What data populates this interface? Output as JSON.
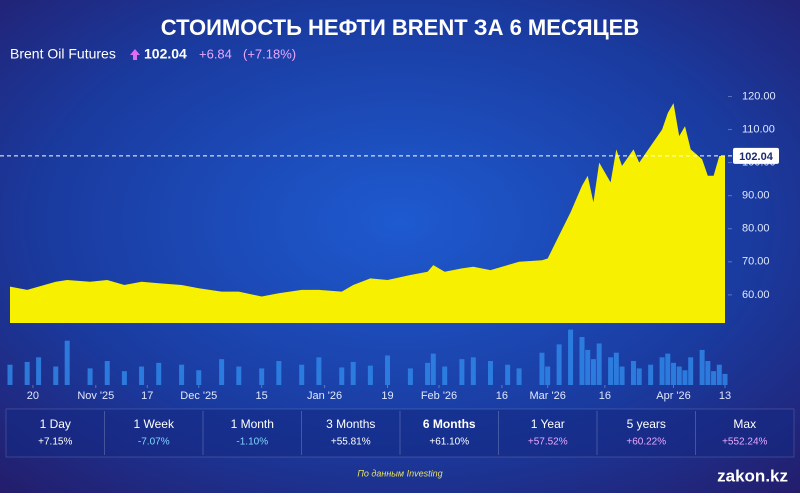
{
  "chart_data": {
    "type": "area",
    "title": "СТОИМОСТЬ НЕФТИ BRENT ЗА 6 МЕСЯЦЕВ",
    "header": {
      "name": "Brent Oil Futures",
      "price": "102.04",
      "change": "+6.84",
      "change_pct": "(+7.18%)"
    },
    "x": [
      0,
      3,
      5,
      8,
      10,
      14,
      17,
      20,
      23,
      26,
      30,
      33,
      37,
      40,
      44,
      47,
      51,
      54,
      58,
      60,
      63,
      66,
      70,
      73,
      74,
      76,
      79,
      81,
      84,
      87,
      89,
      93,
      94,
      96,
      98,
      100,
      101,
      102,
      103,
      105,
      106,
      107,
      109,
      110,
      112,
      114,
      115,
      116,
      117,
      118,
      119,
      121,
      122,
      123,
      124,
      125
    ],
    "series": [
      {
        "name": "Brent Oil Futures",
        "color": "#f7f000",
        "values": [
          62.5,
          61.5,
          62.5,
          64,
          64.5,
          64,
          64.5,
          63,
          64,
          63.5,
          63,
          62,
          61,
          61,
          59.5,
          60.5,
          61.5,
          61.5,
          61,
          63,
          65,
          64.5,
          66,
          67,
          69,
          67,
          68,
          68.5,
          67.5,
          69,
          70,
          70.5,
          71,
          78,
          85,
          93,
          96,
          88,
          100,
          94,
          104,
          99,
          104,
          100,
          105,
          110,
          115,
          118,
          108,
          111,
          104,
          101,
          96,
          96,
          102,
          102.04
        ]
      }
    ],
    "volume": [
      22,
      25,
      30,
      20,
      48,
      18,
      26,
      15,
      20,
      24,
      22,
      16,
      28,
      20,
      18,
      26,
      22,
      30,
      19,
      25,
      21,
      32,
      18,
      24,
      34,
      20,
      28,
      30,
      26,
      22,
      18,
      35,
      20,
      44,
      60,
      52,
      38,
      28,
      45,
      30,
      35,
      20,
      26,
      18,
      22,
      30,
      34,
      24,
      20,
      16,
      30,
      38,
      26,
      15,
      22,
      12
    ],
    "volume_color": "#2f86e8",
    "volume_lim": [
      0,
      65
    ],
    "xlim": [
      0,
      125
    ],
    "ylim": [
      51.5,
      128
    ],
    "xticks": [
      {
        "value": 4,
        "label": "20"
      },
      {
        "value": 15,
        "label": "Nov '25"
      },
      {
        "value": 24,
        "label": "17"
      },
      {
        "value": 33,
        "label": "Dec '25"
      },
      {
        "value": 44,
        "label": "15"
      },
      {
        "value": 55,
        "label": "Jan '26"
      },
      {
        "value": 66,
        "label": "19"
      },
      {
        "value": 75,
        "label": "Feb '26"
      },
      {
        "value": 86,
        "label": "16"
      },
      {
        "value": 94,
        "label": "Mar '26"
      },
      {
        "value": 104,
        "label": "16"
      },
      {
        "value": 116,
        "label": "Apr '26"
      },
      {
        "value": 125,
        "label": "13"
      }
    ],
    "yticks": [
      {
        "value": 60,
        "label": "60.00"
      },
      {
        "value": 70,
        "label": "70.00"
      },
      {
        "value": 80,
        "label": "80.00"
      },
      {
        "value": 90,
        "label": "90.00"
      },
      {
        "value": 100,
        "label": "100.00"
      },
      {
        "value": 110,
        "label": "110.00"
      },
      {
        "value": 120,
        "label": "120.00"
      }
    ],
    "price_marker": 102.04,
    "periods": [
      {
        "label": "1 Day",
        "change": "+7.15%",
        "color": "#ffffff"
      },
      {
        "label": "1 Week",
        "change": "-7.07%",
        "color": "#7fd8ff"
      },
      {
        "label": "1 Month",
        "change": "-1.10%",
        "color": "#7fd8ff"
      },
      {
        "label": "3 Months",
        "change": "+55.81%",
        "color": "#ffffff"
      },
      {
        "label": "6 Months",
        "change": "+61.10%",
        "color": "#ffffff"
      },
      {
        "label": "1 Year",
        "change": "+57.52%",
        "color": "#e9a8ff"
      },
      {
        "label": "5 years",
        "change": "+60.22%",
        "color": "#e9a8ff"
      },
      {
        "label": "Max",
        "change": "+552.24%",
        "color": "#e9a8ff"
      }
    ],
    "active_period": "6 Months",
    "source": "По данным Investing",
    "brand": "zakon.kz"
  }
}
